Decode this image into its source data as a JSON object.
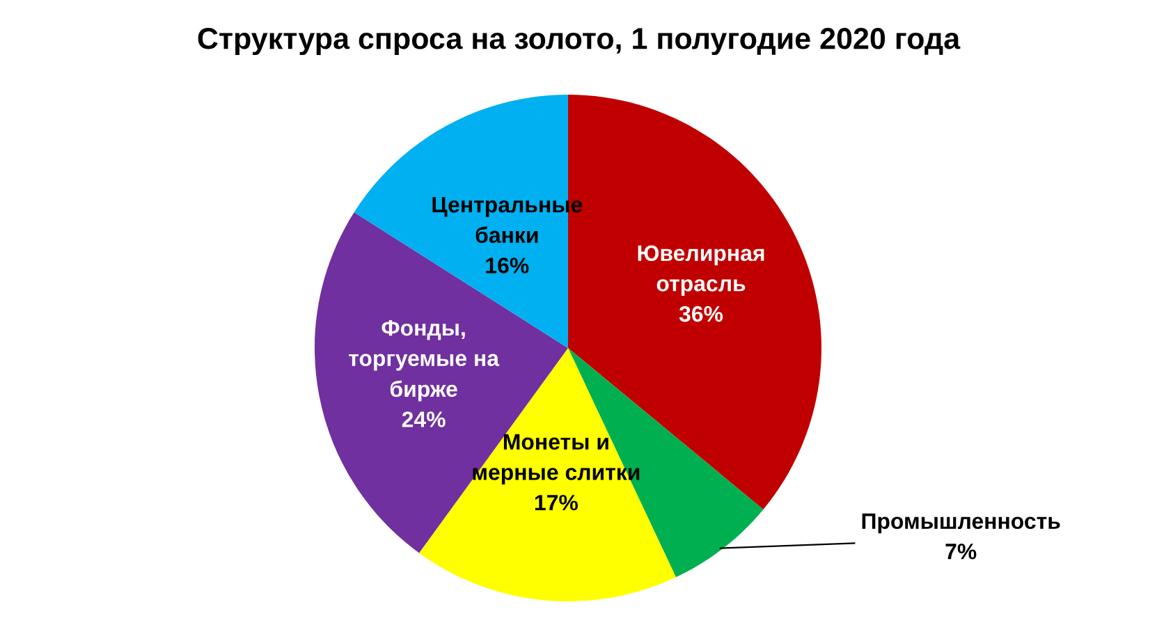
{
  "chart_data": {
    "type": "pie",
    "title": "Структура спроса на золото, 1 полугодие 2020 года",
    "categories": [
      "Ювелирная отрасль",
      "Промышленность",
      "Монеты и мерные слитки",
      "Фонды, торгуемые на бирже",
      "Центральные банки"
    ],
    "values": [
      36,
      7,
      17,
      24,
      16
    ],
    "value_labels": [
      "36%",
      "7%",
      "17%",
      "24%",
      "16%"
    ],
    "colors": [
      "#c00000",
      "#00b050",
      "#ffff00",
      "#7030a0",
      "#00b0f0"
    ],
    "legend": false
  }
}
